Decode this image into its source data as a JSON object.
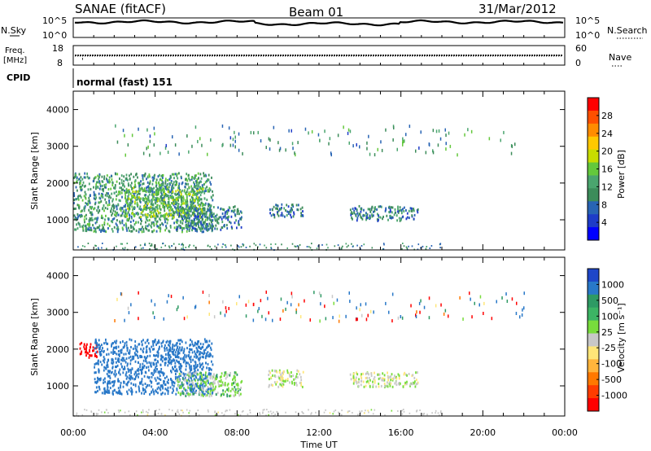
{
  "header": {
    "station": "SANAE (fitACF)",
    "beam": "Beam 01",
    "date": "31/Mar/2012"
  },
  "panels": {
    "nsky": {
      "left_label": "N.Sky",
      "right_label": "N.Search",
      "left_ticks": [
        "10^5",
        "10^0"
      ],
      "right_ticks": [
        "10^5",
        "10^0"
      ]
    },
    "freq": {
      "left_label_1": "Freq.",
      "left_label_2": "[MHz]",
      "right_label": "Nave",
      "left_ticks": [
        "18",
        "8"
      ],
      "right_ticks": [
        "60",
        "0"
      ]
    },
    "cpid": {
      "label": "CPID",
      "text": "normal (fast) 151"
    }
  },
  "power_colorbar": {
    "label": "Power [dB]",
    "ticks": [
      "28",
      "24",
      "20",
      "16",
      "12",
      "8",
      "4"
    ],
    "colors": [
      "#ff0000",
      "#ff5000",
      "#ff8c00",
      "#ffc800",
      "#c8dc00",
      "#64c83c",
      "#4aa56e",
      "#3c8c5a",
      "#2864b4",
      "#1e3cc8",
      "#0000ff"
    ]
  },
  "velocity_colorbar": {
    "label": "Velocity [m s⁻¹]",
    "ticks": [
      "1000",
      "500",
      "100",
      "25",
      "-25",
      "-100",
      "-500",
      "-1000"
    ],
    "colors": [
      "#1e46c8",
      "#2878c8",
      "#2e9a64",
      "#3cb464",
      "#78dc3c",
      "#c8c8c8",
      "#ffe678",
      "#ffb43c",
      "#ff7800",
      "#ff3c00",
      "#ff0000"
    ]
  },
  "x_axis": {
    "label": "Time UT",
    "ticks": [
      "00:00",
      "04:00",
      "08:00",
      "12:00",
      "16:00",
      "20:00",
      "00:00"
    ]
  },
  "chart_data": [
    {
      "type": "heatmap",
      "title": "",
      "xlabel": "Time UT",
      "ylabel": "Slant Range [km]",
      "xlim": [
        0,
        24
      ],
      "ylim": [
        180,
        4500
      ],
      "ytick_labels": [
        "1000",
        "2000",
        "3000",
        "4000"
      ],
      "colorbar": "Power [dB]",
      "echo_regions": [
        {
          "t0": 0.0,
          "t1": 6.8,
          "r0": 700,
          "r1": 2300,
          "power_db": 10
        },
        {
          "t0": 2.5,
          "t1": 6.3,
          "r0": 1100,
          "r1": 1900,
          "power_db": 14
        },
        {
          "t0": 5.0,
          "t1": 8.2,
          "r0": 750,
          "r1": 1400,
          "power_db": 8
        },
        {
          "t0": 9.5,
          "t1": 11.2,
          "r0": 1100,
          "r1": 1450,
          "power_db": 7
        },
        {
          "t0": 13.5,
          "t1": 16.8,
          "r0": 1000,
          "r1": 1400,
          "power_db": 8
        }
      ]
    },
    {
      "type": "heatmap",
      "title": "",
      "xlabel": "Time UT",
      "ylabel": "Slant Range [km]",
      "xlim": [
        0,
        24
      ],
      "ylim": [
        180,
        4500
      ],
      "ytick_labels": [
        "1000",
        "2000",
        "3000",
        "4000"
      ],
      "colorbar": "Velocity [m s⁻¹]",
      "echo_regions": [
        {
          "t0": 0.3,
          "t1": 1.2,
          "r0": 1800,
          "r1": 2200,
          "velocity_ms": -1000
        },
        {
          "t0": 1.0,
          "t1": 6.8,
          "r0": 800,
          "r1": 2300,
          "velocity_ms": 500
        },
        {
          "t0": 5.0,
          "t1": 8.2,
          "r0": 750,
          "r1": 1400,
          "velocity_ms": 50
        },
        {
          "t0": 9.5,
          "t1": 11.2,
          "r0": 1000,
          "r1": 1450,
          "velocity_ms": 0
        },
        {
          "t0": 13.5,
          "t1": 16.8,
          "r0": 1000,
          "r1": 1400,
          "velocity_ms": 0
        }
      ]
    }
  ]
}
